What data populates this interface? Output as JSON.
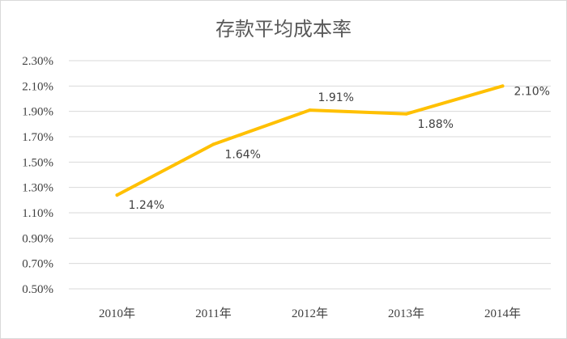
{
  "chart_data": {
    "type": "line",
    "title": "存款平均成本率",
    "categories": [
      "2010年",
      "2011年",
      "2012年",
      "2013年",
      "2014年"
    ],
    "series": [
      {
        "values": [
          1.24,
          1.64,
          1.91,
          1.88,
          2.1
        ],
        "color": "#FFC000"
      }
    ],
    "data_labels": [
      "1.24%",
      "1.64%",
      "1.91%",
      "1.88%",
      "2.10%"
    ],
    "y_ticks": [
      "0.50%",
      "0.70%",
      "0.90%",
      "1.10%",
      "1.30%",
      "1.50%",
      "1.70%",
      "1.90%",
      "2.10%",
      "2.30%"
    ],
    "ylim": [
      0.5,
      2.3
    ],
    "grid": true,
    "legend": "none"
  }
}
